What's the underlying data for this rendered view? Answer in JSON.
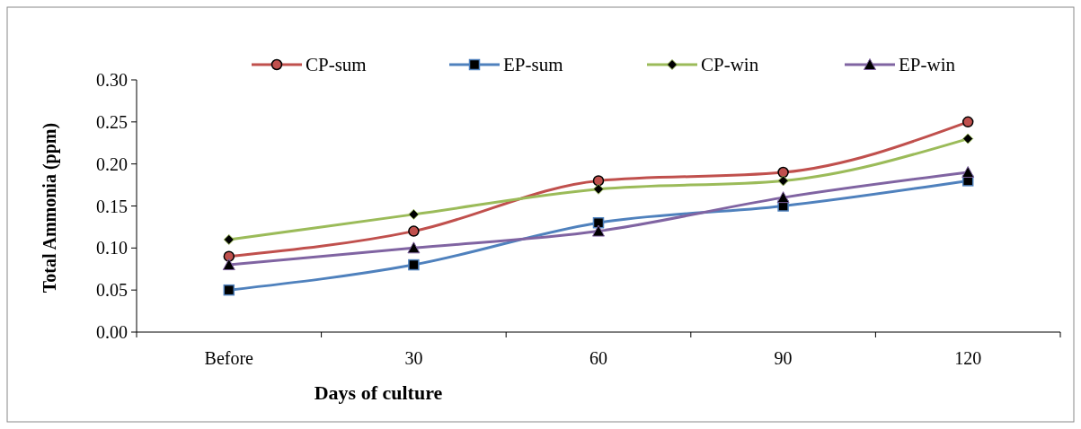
{
  "chart_data": {
    "type": "line",
    "xlabel": "Days of culture",
    "ylabel": "Total Ammonia (ppm)",
    "categories": [
      "Before",
      "30",
      "60",
      "90",
      "120"
    ],
    "series": [
      {
        "name": "CP-sum",
        "color": "#c0504d",
        "marker": "circle",
        "values": [
          0.09,
          0.12,
          0.18,
          0.19,
          0.25
        ]
      },
      {
        "name": "EP-sum",
        "color": "#4f81bd",
        "marker": "square",
        "values": [
          0.05,
          0.08,
          0.13,
          0.15,
          0.18
        ]
      },
      {
        "name": "CP-win",
        "color": "#9bbb59",
        "marker": "diamond",
        "values": [
          0.11,
          0.14,
          0.17,
          0.18,
          0.23
        ]
      },
      {
        "name": "EP-win",
        "color": "#8064a2",
        "marker": "triangle",
        "values": [
          0.08,
          0.1,
          0.12,
          0.16,
          0.19
        ]
      }
    ],
    "ylim": [
      0,
      0.3
    ],
    "yticks": [
      {
        "value": 0,
        "label": "0.00"
      },
      {
        "value": 0.05,
        "label": "0.05"
      },
      {
        "value": 0.1,
        "label": "0.10"
      },
      {
        "value": 0.15,
        "label": "0.15"
      },
      {
        "value": 0.2,
        "label": "0.20"
      },
      {
        "value": 0.25,
        "label": "0.25"
      },
      {
        "value": 0.3,
        "label": "0.30"
      }
    ],
    "grid": false,
    "legend": "top"
  }
}
